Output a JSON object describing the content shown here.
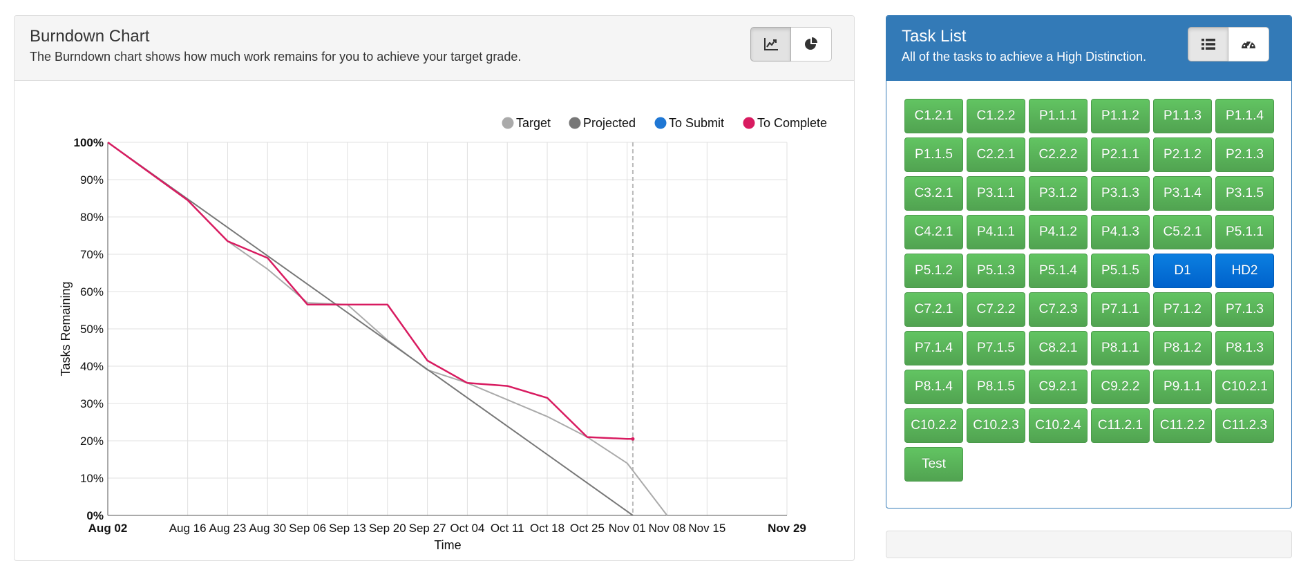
{
  "burndown": {
    "title": "Burndown Chart",
    "subtitle": "The Burndown chart shows how much work remains for you to achieve your target grade.",
    "buttons": [
      {
        "icon": "line-chart-icon",
        "active": true
      },
      {
        "icon": "pie-chart-icon",
        "active": false
      }
    ]
  },
  "tasks_panel": {
    "title": "Task List",
    "subtitle": "All of the tasks to achieve a High Distinction.",
    "buttons": [
      {
        "icon": "list-icon",
        "active": true
      },
      {
        "icon": "dashboard-icon",
        "active": false
      }
    ],
    "tasks": [
      {
        "label": "C1.2.1",
        "color": "green"
      },
      {
        "label": "C1.2.2",
        "color": "green"
      },
      {
        "label": "P1.1.1",
        "color": "green"
      },
      {
        "label": "P1.1.2",
        "color": "green"
      },
      {
        "label": "P1.1.3",
        "color": "green"
      },
      {
        "label": "P1.1.4",
        "color": "green"
      },
      {
        "label": "P1.1.5",
        "color": "green"
      },
      {
        "label": "C2.2.1",
        "color": "green"
      },
      {
        "label": "C2.2.2",
        "color": "green"
      },
      {
        "label": "P2.1.1",
        "color": "green"
      },
      {
        "label": "P2.1.2",
        "color": "green"
      },
      {
        "label": "P2.1.3",
        "color": "green"
      },
      {
        "label": "C3.2.1",
        "color": "green"
      },
      {
        "label": "P3.1.1",
        "color": "green"
      },
      {
        "label": "P3.1.2",
        "color": "green"
      },
      {
        "label": "P3.1.3",
        "color": "green"
      },
      {
        "label": "P3.1.4",
        "color": "green"
      },
      {
        "label": "P3.1.5",
        "color": "green"
      },
      {
        "label": "C4.2.1",
        "color": "green"
      },
      {
        "label": "P4.1.1",
        "color": "green"
      },
      {
        "label": "P4.1.2",
        "color": "green"
      },
      {
        "label": "P4.1.3",
        "color": "green"
      },
      {
        "label": "C5.2.1",
        "color": "green"
      },
      {
        "label": "P5.1.1",
        "color": "green"
      },
      {
        "label": "P5.1.2",
        "color": "green"
      },
      {
        "label": "P5.1.3",
        "color": "green"
      },
      {
        "label": "P5.1.4",
        "color": "green"
      },
      {
        "label": "P5.1.5",
        "color": "green"
      },
      {
        "label": "D1",
        "color": "blue"
      },
      {
        "label": "HD2",
        "color": "blue"
      },
      {
        "label": "C7.2.1",
        "color": "green"
      },
      {
        "label": "C7.2.2",
        "color": "green"
      },
      {
        "label": "C7.2.3",
        "color": "green"
      },
      {
        "label": "P7.1.1",
        "color": "green"
      },
      {
        "label": "P7.1.2",
        "color": "green"
      },
      {
        "label": "P7.1.3",
        "color": "green"
      },
      {
        "label": "P7.1.4",
        "color": "green"
      },
      {
        "label": "P7.1.5",
        "color": "green"
      },
      {
        "label": "C8.2.1",
        "color": "green"
      },
      {
        "label": "P8.1.1",
        "color": "green"
      },
      {
        "label": "P8.1.2",
        "color": "green"
      },
      {
        "label": "P8.1.3",
        "color": "green"
      },
      {
        "label": "P8.1.4",
        "color": "green"
      },
      {
        "label": "P8.1.5",
        "color": "green"
      },
      {
        "label": "C9.2.1",
        "color": "green"
      },
      {
        "label": "C9.2.2",
        "color": "green"
      },
      {
        "label": "P9.1.1",
        "color": "green"
      },
      {
        "label": "C10.2.1",
        "color": "green"
      },
      {
        "label": "C10.2.2",
        "color": "green"
      },
      {
        "label": "C10.2.3",
        "color": "green"
      },
      {
        "label": "C10.2.4",
        "color": "green"
      },
      {
        "label": "C11.2.1",
        "color": "green"
      },
      {
        "label": "C11.2.2",
        "color": "green"
      },
      {
        "label": "C11.2.3",
        "color": "green"
      },
      {
        "label": "Test",
        "color": "green"
      }
    ]
  },
  "colors": {
    "target": "#aaaaaa",
    "projected": "#777777",
    "to_submit": "#1f77d4",
    "to_complete": "#d81b60",
    "task_green": "#5cb85c",
    "task_blue": "#0a72d6",
    "header_blue": "#337ab7"
  },
  "chart_data": {
    "type": "line",
    "xlabel": "Time",
    "ylabel": "Tasks Remaining",
    "legend_position": "top-right",
    "grid": true,
    "x_tick_labels": [
      "Aug 02",
      "Aug 16",
      "Aug 23",
      "Aug 30",
      "Sep 06",
      "Sep 13",
      "Sep 20",
      "Sep 27",
      "Oct 04",
      "Oct 11",
      "Oct 18",
      "Oct 25",
      "Nov 01",
      "Nov 08",
      "Nov 15",
      "Nov 29"
    ],
    "x_tick_bold": [
      "Aug 02",
      "Nov 29"
    ],
    "x_domain": [
      "2021-08-02",
      "2021-11-29"
    ],
    "current_date": "2021-11-02",
    "y_ticks": [
      "0%",
      "10%",
      "20%",
      "30%",
      "40%",
      "50%",
      "60%",
      "70%",
      "80%",
      "90%",
      "100%"
    ],
    "y_bold": [
      "0%",
      "100%"
    ],
    "ylim": [
      0,
      100
    ],
    "series": [
      {
        "name": "Target",
        "color": "#aaaaaa",
        "points": [
          [
            "2021-08-02",
            100
          ],
          [
            "2021-08-16",
            84.5
          ],
          [
            "2021-08-23",
            73.5
          ],
          [
            "2021-08-30",
            66
          ],
          [
            "2021-09-06",
            57
          ],
          [
            "2021-09-13",
            56.5
          ],
          [
            "2021-09-20",
            47
          ],
          [
            "2021-09-27",
            39
          ],
          [
            "2021-10-04",
            35.5
          ],
          [
            "2021-10-11",
            31
          ],
          [
            "2021-10-18",
            26.5
          ],
          [
            "2021-10-25",
            21
          ],
          [
            "2021-11-01",
            14
          ],
          [
            "2021-11-08",
            0
          ]
        ]
      },
      {
        "name": "Projected",
        "color": "#777777",
        "points": [
          [
            "2021-08-02",
            100
          ],
          [
            "2021-11-02",
            0
          ]
        ]
      },
      {
        "name": "To Submit",
        "color": "#1f77d4",
        "points": []
      },
      {
        "name": "To Complete",
        "color": "#d81b60",
        "points": [
          [
            "2021-08-02",
            100
          ],
          [
            "2021-08-16",
            84.5
          ],
          [
            "2021-08-23",
            73.5
          ],
          [
            "2021-08-30",
            69
          ],
          [
            "2021-09-06",
            56.5
          ],
          [
            "2021-09-13",
            56.5
          ],
          [
            "2021-09-20",
            56.5
          ],
          [
            "2021-09-27",
            41.5
          ],
          [
            "2021-10-04",
            35.5
          ],
          [
            "2021-10-11",
            34.7
          ],
          [
            "2021-10-18",
            31.5
          ],
          [
            "2021-10-25",
            21
          ],
          [
            "2021-11-01",
            20.5
          ],
          [
            "2021-11-02",
            20.5
          ]
        ]
      }
    ]
  }
}
